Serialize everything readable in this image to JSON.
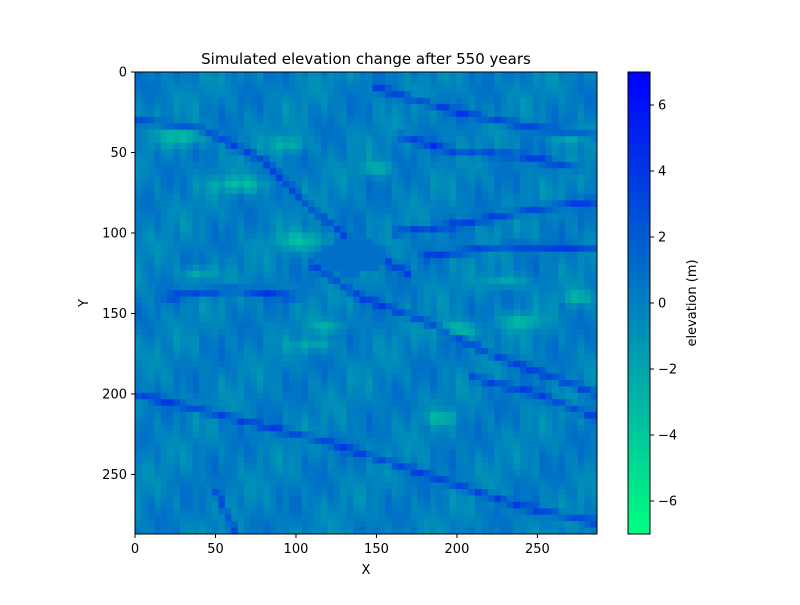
{
  "chart_data": {
    "type": "heatmap",
    "title": "Simulated elevation change after 550 years",
    "xlabel": "X",
    "ylabel": "Y",
    "xlim": [
      0,
      287
    ],
    "ylim": [
      287,
      0
    ],
    "x_ticks": [
      0,
      50,
      100,
      150,
      200,
      250
    ],
    "y_ticks": [
      0,
      50,
      100,
      150,
      200,
      250
    ],
    "colorbar": {
      "label": "elevation (m)",
      "range": [
        -7,
        7
      ],
      "ticks": [
        -6,
        -4,
        -2,
        0,
        2,
        4,
        6
      ],
      "tick_labels": [
        "−6",
        "−4",
        "−2",
        "0",
        "2",
        "4",
        "6"
      ],
      "colormap": "winter",
      "low_color": "#00ff80",
      "high_color": "#0000ff"
    },
    "features": {
      "predominant_value": 0,
      "channels_high_value": 3,
      "ridges_low_value": -3
    }
  }
}
